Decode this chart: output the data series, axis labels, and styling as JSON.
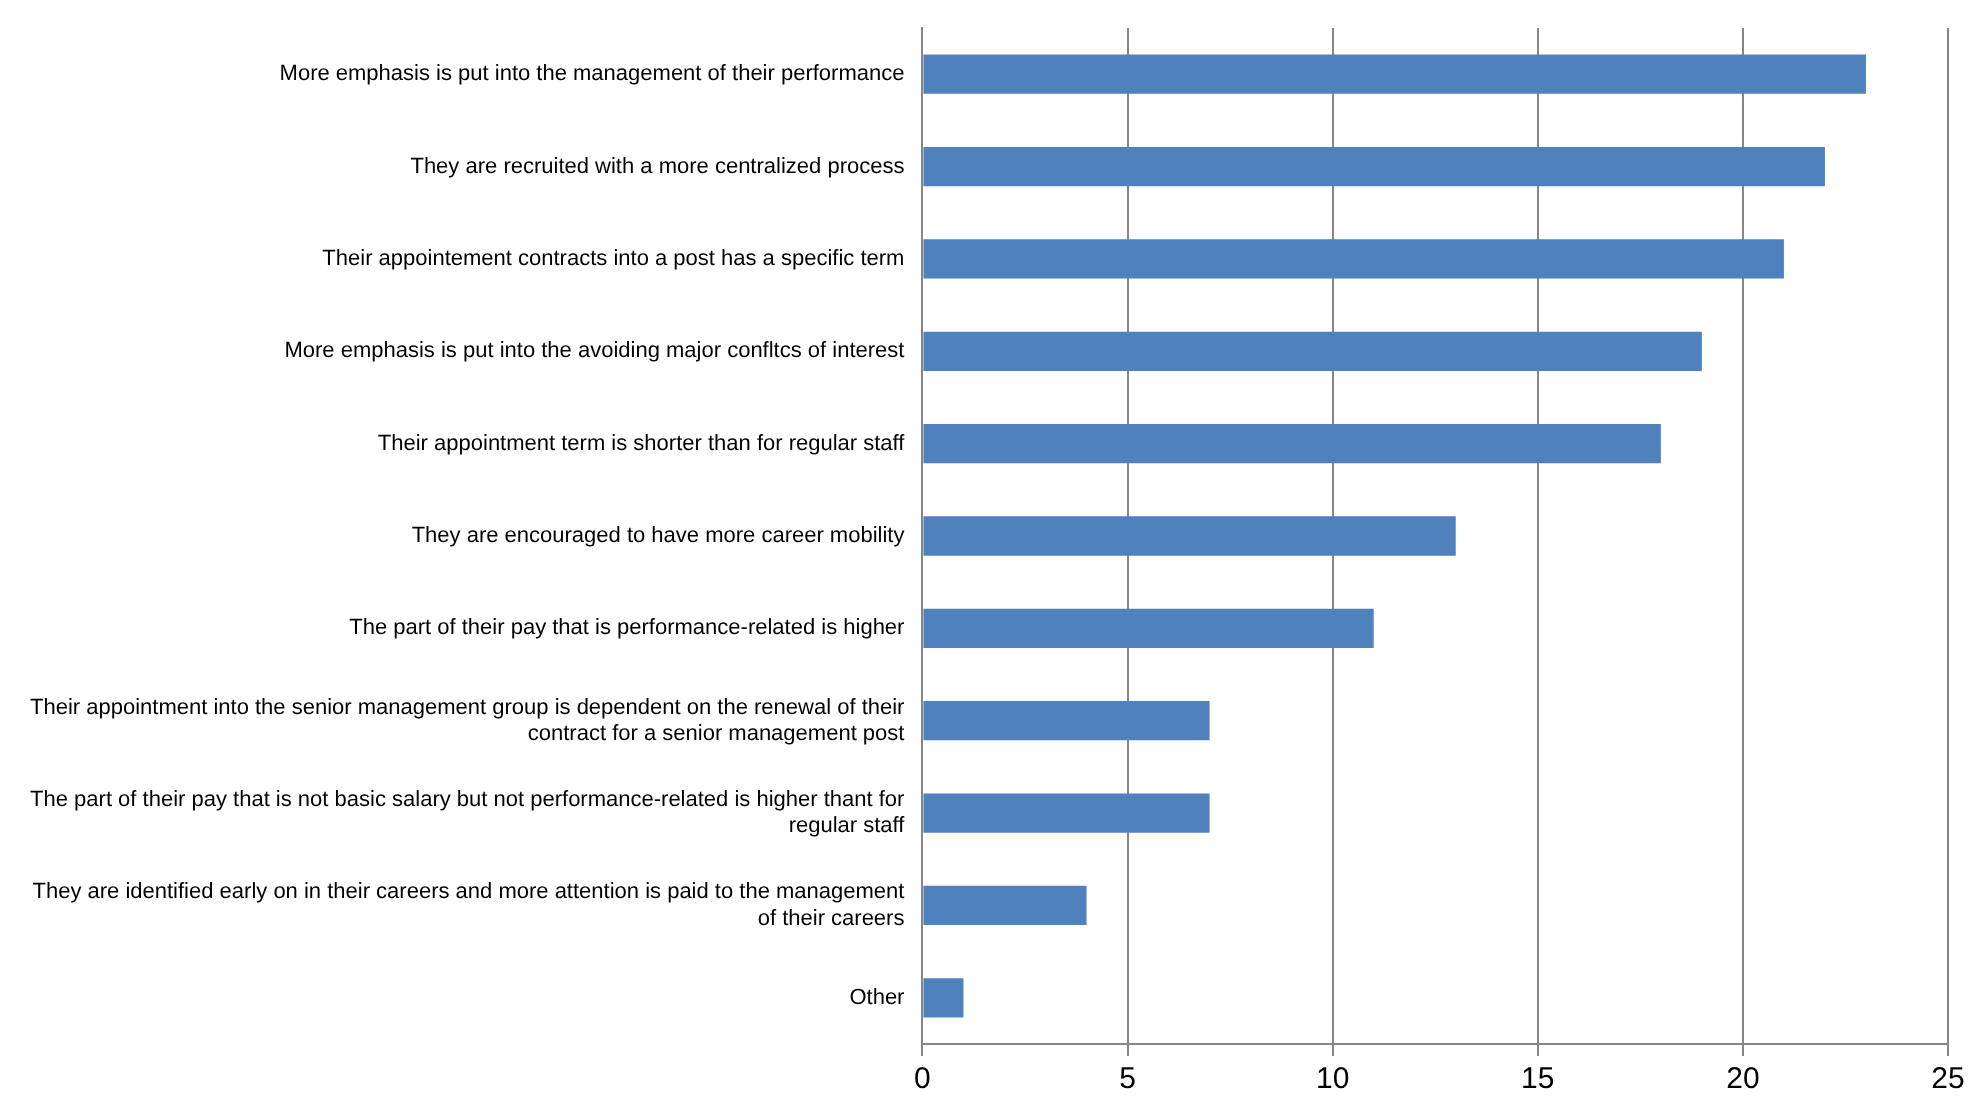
{
  "chart_data": {
    "type": "bar",
    "orientation": "horizontal",
    "categories": [
      "More emphasis is put into the management of their performance",
      "They are recruited with a more centralized process",
      "Their appointement contracts into a post has a specific term",
      "More emphasis is put into the avoiding major confltcs of interest",
      "Their appointment term is shorter than for regular staff",
      "They are encouraged to have more career mobility",
      "The part of their pay that is performance-related is higher",
      "Their appointment into the senior management group is dependent on the renewal of their contract for a senior management post",
      "The part of their pay that is not basic salary but not performance-related is higher thant for regular staff",
      "They are identified early on in their careers and more attention is paid to the management of their careers",
      "Other"
    ],
    "values": [
      23,
      22,
      21,
      19,
      18,
      13,
      11,
      7,
      7,
      4,
      1
    ],
    "color": "#4f81bd",
    "xlim": [
      0,
      25
    ],
    "xticks": [
      0,
      5,
      10,
      15,
      20,
      25
    ],
    "grid": "x",
    "legend": false
  }
}
